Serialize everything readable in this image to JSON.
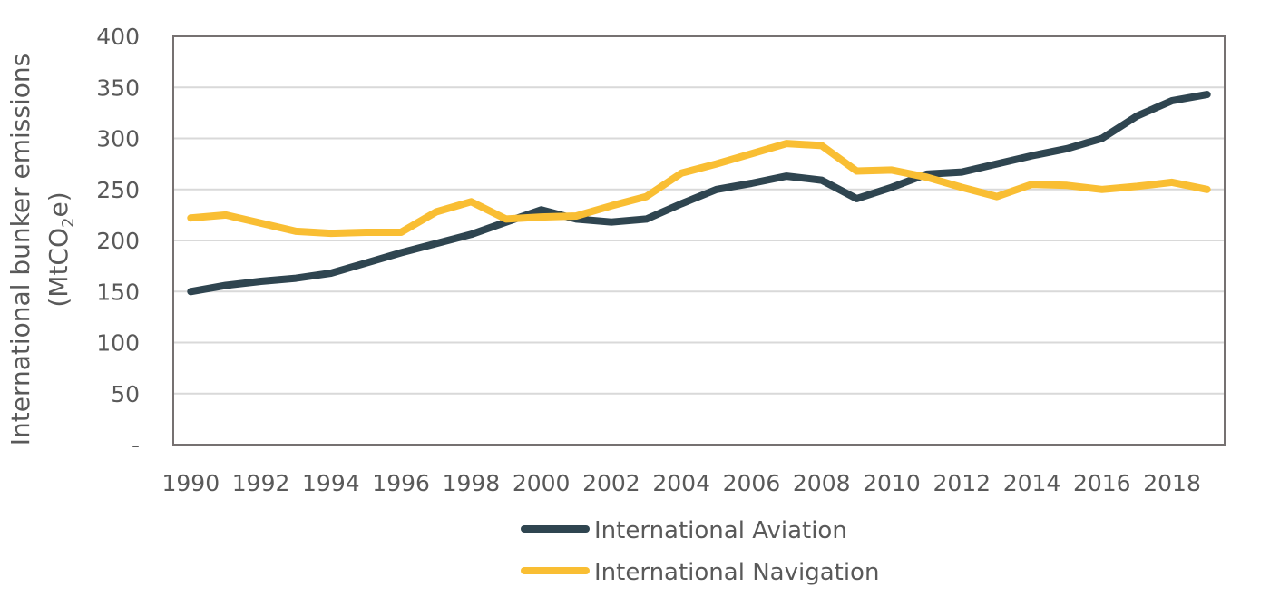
{
  "chart_data": {
    "type": "line",
    "title": "",
    "xlabel": "",
    "ylabel": "International bunker emissions",
    "ylabel_line2_prefix": "(MtCO",
    "ylabel_line2_subscript": "2",
    "ylabel_line2_suffix": "e)",
    "ylim": [
      0,
      400
    ],
    "y_ticks": [
      0,
      50,
      100,
      150,
      200,
      250,
      300,
      350,
      400
    ],
    "y_tick_labels": [
      "-",
      "50",
      "100",
      "150",
      "200",
      "250",
      "300",
      "350",
      "400"
    ],
    "x": [
      1990,
      1991,
      1992,
      1993,
      1994,
      1995,
      1996,
      1997,
      1998,
      1999,
      2000,
      2001,
      2002,
      2003,
      2004,
      2005,
      2006,
      2007,
      2008,
      2009,
      2010,
      2011,
      2012,
      2013,
      2014,
      2015,
      2016,
      2017,
      2018,
      2019
    ],
    "x_tick_labels": [
      "1990",
      "1992",
      "1994",
      "1996",
      "1998",
      "2000",
      "2002",
      "2004",
      "2006",
      "2008",
      "2010",
      "2012",
      "2014",
      "2016",
      "2018"
    ],
    "grid": true,
    "legend_position": "bottom",
    "series": [
      {
        "name": "International Aviation",
        "color": "#2f4550",
        "values": [
          150,
          156,
          160,
          163,
          168,
          178,
          188,
          197,
          206,
          218,
          230,
          221,
          218,
          221,
          236,
          250,
          256,
          263,
          259,
          241,
          252,
          265,
          267,
          275,
          283,
          290,
          300,
          322,
          337,
          343
        ]
      },
      {
        "name": "International Navigation",
        "color": "#f9be33",
        "values": [
          222,
          225,
          217,
          209,
          207,
          208,
          208,
          228,
          238,
          221,
          223,
          224,
          234,
          243,
          266,
          275,
          285,
          295,
          293,
          268,
          269,
          262,
          252,
          243,
          255,
          254,
          250,
          253,
          257,
          250
        ]
      }
    ]
  }
}
